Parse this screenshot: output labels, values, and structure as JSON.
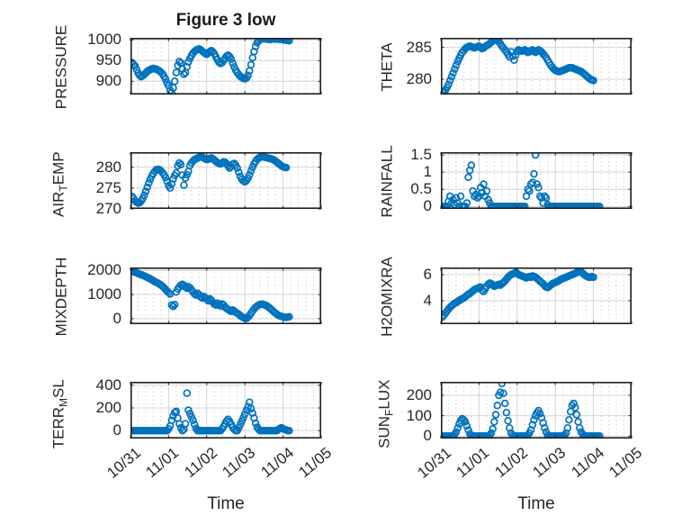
{
  "title": "Figure 3 low",
  "colors": {
    "marker": "#0072BD",
    "axis_box": "#1f1f1f",
    "grid_major": "#d4d4d4",
    "grid_minor": "#c6c6c6",
    "text": "#262626"
  },
  "x_axis": {
    "label": "Time",
    "tick_labels": [
      "10/31",
      "11/01",
      "11/02",
      "11/03",
      "11/04",
      "11/05"
    ],
    "xlim": [
      0,
      5
    ],
    "minor_per_interval": 5
  },
  "chart_data": [
    {
      "name": "pressure",
      "type": "scatter",
      "position": {
        "row": 0,
        "col": 0
      },
      "ylabel": "PRESSURE",
      "ylabel_parts": [
        {
          "t": "PRESSURE",
          "sub": false
        }
      ],
      "yticks": [
        900,
        950,
        1000
      ],
      "ylim": [
        868,
        1005
      ],
      "x_start": 0.04,
      "x_step": 0.04,
      "y_values": [
        945,
        941,
        937,
        928,
        920,
        914,
        911,
        913,
        916,
        920,
        924,
        926,
        928,
        930,
        931,
        930,
        929,
        927,
        925,
        922,
        918,
        912,
        905,
        896,
        889,
        878,
        872,
        884,
        900,
        921,
        938,
        948,
        944,
        930,
        917,
        921,
        935,
        947,
        955,
        962,
        968,
        972,
        975,
        977,
        978,
        976,
        973,
        970,
        967,
        965,
        968,
        972,
        974,
        971,
        966,
        959,
        952,
        946,
        943,
        945,
        950,
        956,
        961,
        963,
        960,
        953,
        944,
        935,
        927,
        921,
        916,
        912,
        909,
        907,
        906,
        908,
        914,
        925,
        940,
        957,
        972,
        984,
        993,
        998,
        1001,
        1002,
        1003,
        1003,
        1002,
        1002,
        1001,
        1001,
        1002,
        1002,
        1003,
        1002,
        1002,
        1001,
        1001,
        1000,
        1000,
        999,
        999,
        998
      ]
    },
    {
      "name": "theta",
      "type": "scatter",
      "position": {
        "row": 0,
        "col": 1
      },
      "ylabel": "THETA",
      "ylabel_parts": [
        {
          "t": "THETA",
          "sub": false
        }
      ],
      "yticks": [
        280,
        285
      ],
      "ylim": [
        277.6,
        286.5
      ],
      "x_start": 0.04,
      "x_step": 0.04,
      "y_values": [
        278.0,
        278.1,
        278.3,
        278.7,
        279.2,
        279.8,
        280.4,
        281.0,
        281.6,
        282.2,
        282.8,
        283.3,
        283.8,
        284.2,
        284.5,
        284.8,
        285.0,
        285.1,
        285.2,
        285.1,
        285.0,
        284.9,
        285.0,
        285.1,
        285.2,
        285.0,
        284.8,
        284.9,
        285.1,
        285.3,
        285.4,
        285.6,
        285.8,
        286.0,
        286.1,
        286.2,
        286.1,
        285.9,
        285.6,
        285.2,
        284.9,
        284.6,
        284.3,
        283.9,
        283.5,
        284.3,
        283.6,
        283.0,
        283.8,
        284.4,
        284.6,
        284.5,
        284.4,
        284.5,
        284.6,
        284.4,
        284.2,
        284.3,
        284.5,
        284.6,
        284.4,
        284.2,
        284.4,
        284.6,
        284.5,
        284.3,
        284.0,
        283.7,
        283.4,
        283.0,
        282.6,
        282.2,
        281.9,
        281.6,
        281.4,
        281.3,
        281.2,
        281.2,
        281.3,
        281.4,
        281.5,
        281.6,
        281.7,
        281.8,
        281.8,
        281.8,
        281.7,
        281.6,
        281.5,
        281.4,
        281.3,
        281.2,
        281.0,
        280.8,
        280.6,
        280.4,
        280.2,
        280.0,
        279.9,
        279.8
      ]
    },
    {
      "name": "air_temp",
      "type": "scatter",
      "position": {
        "row": 1,
        "col": 0
      },
      "ylabel": "AIR_TEMP",
      "ylabel_parts": [
        {
          "t": "AIR",
          "sub": false
        },
        {
          "t": "T",
          "sub": true
        },
        {
          "t": "EMP",
          "sub": false
        }
      ],
      "yticks": [
        270,
        275,
        280
      ],
      "ylim": [
        270,
        283.6
      ],
      "x_start": 0.04,
      "x_step": 0.04,
      "y_values": [
        273.0,
        272.5,
        272.0,
        271.6,
        271.4,
        271.5,
        271.9,
        272.5,
        273.3,
        274.2,
        275.2,
        276.2,
        277.1,
        277.9,
        278.5,
        279.0,
        279.4,
        279.5,
        279.4,
        279.1,
        278.7,
        278.2,
        277.5,
        276.6,
        275.6,
        275.0,
        276.0,
        277.2,
        278.0,
        278.6,
        280.3,
        281.0,
        280.6,
        278.1,
        275.7,
        277.4,
        278.2,
        279.0,
        280.4,
        281.0,
        281.5,
        281.8,
        282.0,
        282.2,
        282.4,
        282.5,
        282.4,
        282.2,
        282.0,
        281.8,
        281.9,
        282.1,
        282.2,
        282.0,
        281.7,
        281.4,
        281.1,
        280.9,
        280.8,
        281.0,
        281.3,
        281.2,
        280.8,
        280.3,
        279.8,
        280.2,
        280.7,
        280.9,
        280.5,
        279.8,
        278.8,
        277.8,
        277.1,
        276.7,
        276.5,
        276.8,
        277.4,
        278.2,
        279.1,
        280.0,
        280.8,
        281.4,
        281.9,
        282.2,
        282.4,
        282.5,
        282.5,
        282.4,
        282.3,
        282.2,
        282.1,
        282.0,
        281.9,
        281.7,
        281.5,
        281.2,
        280.9,
        280.6,
        280.3,
        280.1,
        280.0,
        279.9
      ]
    },
    {
      "name": "rainfall",
      "type": "scatter",
      "position": {
        "row": 1,
        "col": 1
      },
      "ylabel": "RAINFALL",
      "ylabel_parts": [
        {
          "t": "RAINFALL",
          "sub": false
        }
      ],
      "yticks": [
        0,
        0.5,
        1,
        1.5
      ],
      "ylim": [
        -0.07,
        1.58
      ],
      "x_start": 0.04,
      "x_step": 0.04,
      "y_values": [
        0,
        0,
        0,
        0,
        0.15,
        0.3,
        0.1,
        0.2,
        0.05,
        0.25,
        0.1,
        0,
        0.3,
        0,
        0,
        0,
        0.1,
        0.85,
        1.05,
        1.2,
        0.45,
        0.3,
        0.35,
        0.25,
        0.3,
        0.55,
        0.4,
        0.65,
        0.3,
        0.45,
        0.2,
        0.1,
        0,
        0,
        0,
        0,
        0,
        0,
        0,
        0,
        0,
        0,
        0,
        0,
        0,
        0,
        0,
        0,
        0,
        0,
        0,
        0,
        0,
        0,
        0,
        0.3,
        0.5,
        0.45,
        0.65,
        0.7,
        0.95,
        1.5,
        0.65,
        0.55,
        0.3,
        0.25,
        0.1,
        0.3,
        0.25,
        0.05,
        0,
        0,
        0,
        0,
        0,
        0,
        0,
        0,
        0,
        0,
        0,
        0,
        0,
        0,
        0,
        0,
        0,
        0,
        0,
        0,
        0,
        0,
        0,
        0,
        0,
        0,
        0,
        0,
        0,
        0,
        0,
        0,
        0,
        0
      ]
    },
    {
      "name": "mixdepth",
      "type": "scatter",
      "position": {
        "row": 2,
        "col": 0
      },
      "ylabel": "MIXDEPTH",
      "ylabel_parts": [
        {
          "t": "MIXDEPTH",
          "sub": false
        }
      ],
      "yticks": [
        0,
        1000,
        2000
      ],
      "ylim": [
        -230,
        2120
      ],
      "x_start": 0.04,
      "x_step": 0.04,
      "y_values": [
        1980,
        1950,
        1920,
        1900,
        1870,
        1840,
        1820,
        1790,
        1770,
        1740,
        1710,
        1680,
        1650,
        1610,
        1570,
        1530,
        1500,
        1470,
        1430,
        1390,
        1340,
        1280,
        1210,
        1140,
        1080,
        1020,
        560,
        510,
        580,
        1100,
        1230,
        1310,
        1390,
        1420,
        1380,
        1310,
        1260,
        1320,
        1280,
        1200,
        1100,
        1020,
        980,
        1050,
        990,
        900,
        850,
        920,
        870,
        800,
        740,
        820,
        760,
        680,
        600,
        560,
        640,
        580,
        520,
        610,
        560,
        480,
        420,
        380,
        340,
        300,
        360,
        320,
        260,
        220,
        180,
        120,
        80,
        40,
        20,
        10,
        60,
        130,
        220,
        320,
        400,
        470,
        520,
        560,
        590,
        600,
        590,
        570,
        540,
        500,
        450,
        400,
        340,
        280,
        230,
        180,
        140,
        110,
        90,
        70,
        60,
        50,
        60,
        80
      ]
    },
    {
      "name": "h2omixra",
      "type": "scatter",
      "position": {
        "row": 2,
        "col": 1
      },
      "ylabel": "H2OMIXRA",
      "ylabel_parts": [
        {
          "t": "H2OMIXRA",
          "sub": false
        }
      ],
      "yticks": [
        4,
        6
      ],
      "ylim": [
        2.2,
        6.55
      ],
      "x_start": 0.04,
      "x_step": 0.04,
      "y_values": [
        2.75,
        2.9,
        3.05,
        3.2,
        3.35,
        3.5,
        3.6,
        3.7,
        3.8,
        3.85,
        3.95,
        4.0,
        4.1,
        4.15,
        4.2,
        4.3,
        4.4,
        4.5,
        4.55,
        4.65,
        4.75,
        4.85,
        4.9,
        4.95,
        5.0,
        5.05,
        4.8,
        4.7,
        4.9,
        5.1,
        5.25,
        5.35,
        5.3,
        5.2,
        5.1,
        5.15,
        5.2,
        5.25,
        5.2,
        5.3,
        5.4,
        5.5,
        5.65,
        5.8,
        5.9,
        6.0,
        6.05,
        6.1,
        6.15,
        6.1,
        6.0,
        5.95,
        5.9,
        5.85,
        5.8,
        5.75,
        5.8,
        5.85,
        5.8,
        5.9,
        5.85,
        5.8,
        5.7,
        5.6,
        5.5,
        5.4,
        5.3,
        5.15,
        5.05,
        5.0,
        5.1,
        5.2,
        5.3,
        5.35,
        5.4,
        5.45,
        5.5,
        5.6,
        5.65,
        5.7,
        5.75,
        5.8,
        5.85,
        5.9,
        5.95,
        6.0,
        6.05,
        6.1,
        6.15,
        6.2,
        6.25,
        6.2,
        6.1,
        6.0,
        5.9,
        5.85,
        5.8,
        5.8,
        5.85,
        5.8
      ]
    },
    {
      "name": "terr_msl",
      "type": "scatter",
      "position": {
        "row": 3,
        "col": 0
      },
      "ylabel": "TERR_MSL",
      "ylabel_parts": [
        {
          "t": "TERR",
          "sub": false
        },
        {
          "t": "M",
          "sub": true
        },
        {
          "t": "SL",
          "sub": false
        }
      ],
      "yticks": [
        0,
        200,
        400
      ],
      "ylim": [
        -70,
        430
      ],
      "x_start": 0.04,
      "x_step": 0.04,
      "y_values": [
        0,
        0,
        0,
        0,
        0,
        0,
        0,
        0,
        0,
        0,
        0,
        0,
        0,
        0,
        0,
        0,
        0,
        0,
        0,
        0,
        0,
        0,
        0,
        0,
        15,
        40,
        90,
        130,
        160,
        170,
        110,
        60,
        25,
        0,
        10,
        60,
        330,
        180,
        150,
        120,
        90,
        55,
        20,
        0,
        0,
        0,
        0,
        0,
        0,
        0,
        0,
        0,
        0,
        0,
        0,
        0,
        0,
        0,
        0,
        15,
        35,
        60,
        85,
        100,
        80,
        55,
        30,
        10,
        0,
        0,
        25,
        55,
        85,
        115,
        145,
        180,
        210,
        250,
        195,
        155,
        110,
        65,
        30,
        10,
        0,
        0,
        0,
        0,
        0,
        0,
        0,
        0,
        0,
        0,
        0,
        0,
        10,
        20,
        25,
        15,
        10,
        5,
        0,
        0
      ]
    },
    {
      "name": "sun_flux",
      "type": "scatter",
      "position": {
        "row": 3,
        "col": 1
      },
      "ylabel": "SUN_FLUX",
      "ylabel_parts": [
        {
          "t": "SUN",
          "sub": false
        },
        {
          "t": "F",
          "sub": true
        },
        {
          "t": "LUX",
          "sub": false
        }
      ],
      "yticks": [
        0,
        100,
        200
      ],
      "ylim": [
        -12,
        266
      ],
      "x_start": 0.04,
      "x_step": 0.04,
      "y_values": [
        0,
        0,
        0,
        0,
        0,
        0,
        0,
        2,
        8,
        20,
        40,
        60,
        75,
        85,
        80,
        70,
        50,
        30,
        12,
        3,
        0,
        0,
        0,
        0,
        0,
        0,
        0,
        0,
        0,
        0,
        0,
        5,
        15,
        35,
        70,
        105,
        150,
        200,
        215,
        258,
        210,
        160,
        115,
        75,
        40,
        15,
        5,
        0,
        0,
        0,
        0,
        0,
        0,
        0,
        0,
        0,
        5,
        15,
        30,
        55,
        80,
        100,
        115,
        125,
        110,
        90,
        65,
        40,
        20,
        5,
        0,
        0,
        0,
        0,
        0,
        0,
        0,
        0,
        0,
        0,
        5,
        15,
        40,
        80,
        120,
        150,
        160,
        140,
        105,
        70,
        40,
        20,
        8,
        2,
        0,
        0,
        0,
        0,
        0,
        0,
        0,
        0,
        0,
        0
      ]
    }
  ]
}
